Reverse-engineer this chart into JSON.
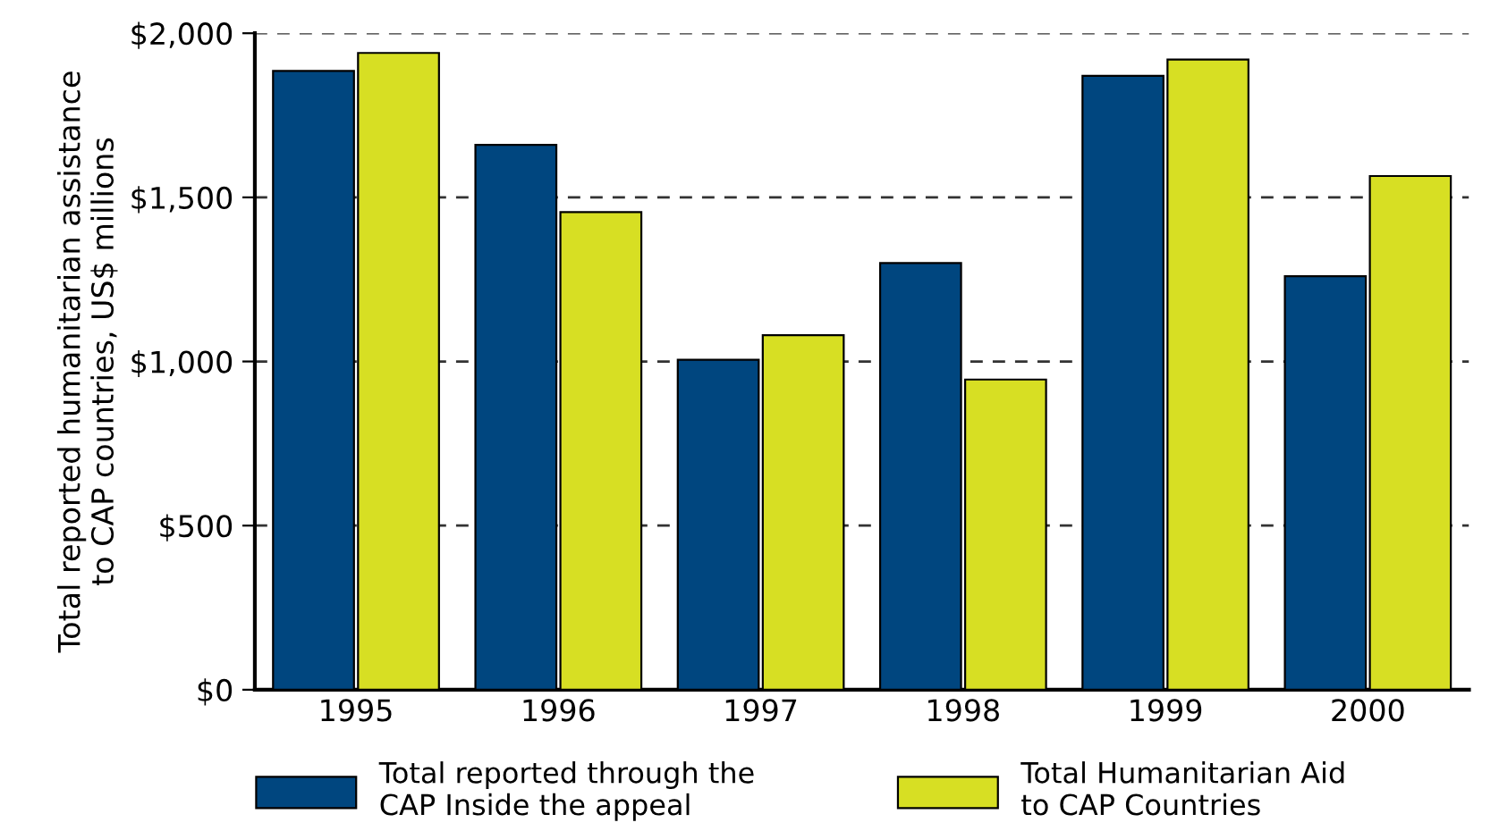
{
  "chart_data": {
    "type": "bar",
    "ylabel": "Total reported humanitarian assistance\nto CAP countries, US$ millions",
    "categories": [
      "1995",
      "1996",
      "1997",
      "1998",
      "1999",
      "2000"
    ],
    "series": [
      {
        "name": "Total reported through the\nCAP Inside the appeal",
        "color": "#00467f",
        "values": [
          1885,
          1660,
          1005,
          1300,
          1870,
          1260
        ]
      },
      {
        "name": "Total Humanitarian Aid\nto CAP Countries",
        "color": "#d7df23",
        "values": [
          1940,
          1455,
          1080,
          945,
          1920,
          1565
        ]
      }
    ],
    "ylim": [
      0,
      2000
    ],
    "yticks": [
      {
        "value": 0,
        "label": "$0"
      },
      {
        "value": 500,
        "label": "$500"
      },
      {
        "value": 1000,
        "label": "$1,000"
      },
      {
        "value": 1500,
        "label": "$1,500"
      },
      {
        "value": 2000,
        "label": "$2,000"
      }
    ],
    "grid": "y",
    "legend": "bottom"
  }
}
